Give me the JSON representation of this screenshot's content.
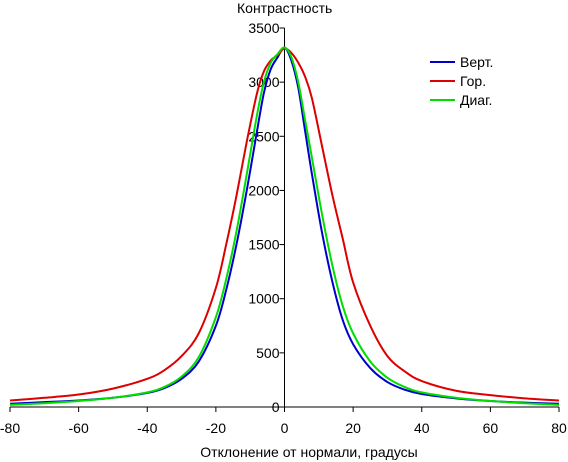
{
  "chart_data": {
    "type": "line",
    "title": "",
    "ylabel": "Контрастность",
    "xlabel": "Отклонение от нормали, градусы",
    "xlim": [
      -80,
      80
    ],
    "ylim": [
      0,
      3500
    ],
    "x_ticks": [
      -80,
      -60,
      -40,
      -20,
      0,
      20,
      40,
      60,
      80
    ],
    "y_ticks": [
      0,
      500,
      1000,
      1500,
      2000,
      2500,
      3000,
      3500
    ],
    "grid": false,
    "legend_position": "top-right",
    "x": [
      -80,
      -70,
      -60,
      -50,
      -40,
      -35,
      -30,
      -25,
      -20,
      -17,
      -14,
      -11,
      -8,
      -6,
      -4,
      -2,
      0,
      2,
      4,
      6,
      8,
      11,
      14,
      17,
      20,
      25,
      30,
      35,
      40,
      50,
      60,
      70,
      80
    ],
    "series": [
      {
        "name": "Верт.",
        "color": "#0000cc",
        "values": [
          30,
          45,
          60,
          85,
          130,
          175,
          260,
          420,
          750,
          1080,
          1500,
          2000,
          2550,
          2900,
          3120,
          3230,
          3320,
          3200,
          2950,
          2550,
          2150,
          1600,
          1150,
          800,
          580,
          360,
          230,
          160,
          120,
          80,
          55,
          40,
          30
        ]
      },
      {
        "name": "Гор.",
        "color": "#dd0000",
        "values": [
          60,
          85,
          115,
          170,
          260,
          340,
          470,
          680,
          1100,
          1500,
          1950,
          2450,
          2900,
          3100,
          3200,
          3250,
          3310,
          3270,
          3180,
          3050,
          2850,
          2400,
          1950,
          1550,
          1150,
          750,
          470,
          330,
          240,
          150,
          110,
          80,
          60
        ]
      },
      {
        "name": "Диаг.",
        "color": "#00dd00",
        "values": [
          20,
          35,
          55,
          85,
          135,
          185,
          280,
          460,
          830,
          1180,
          1620,
          2150,
          2700,
          3000,
          3180,
          3260,
          3320,
          3230,
          3000,
          2650,
          2300,
          1770,
          1300,
          930,
          680,
          420,
          270,
          185,
          135,
          85,
          55,
          35,
          20
        ]
      }
    ]
  }
}
